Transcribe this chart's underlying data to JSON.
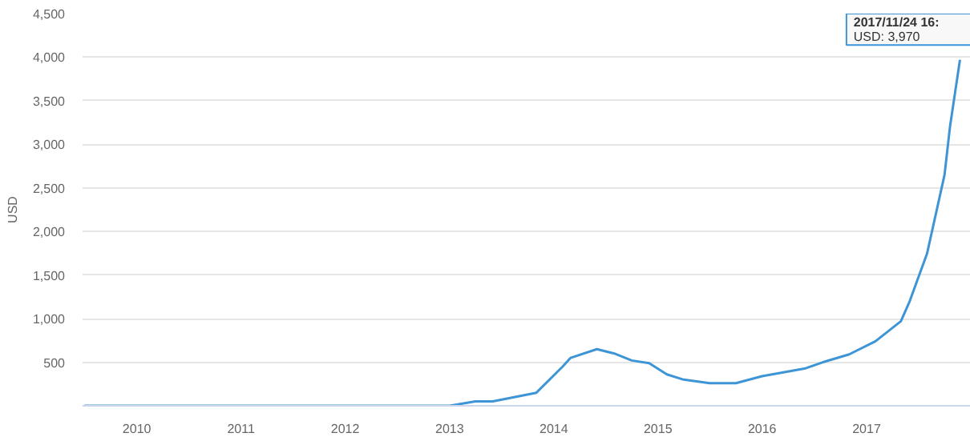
{
  "chart_data": {
    "type": "line",
    "ylabel": "USD",
    "x": [
      "2009-07",
      "2010-06",
      "2011-01",
      "2011-06",
      "2012-01",
      "2012-06",
      "2013-01",
      "2013-04",
      "2013-06",
      "2013-11",
      "2014-02",
      "2014-03",
      "2014-06",
      "2014-08",
      "2014-10",
      "2014-12",
      "2015-02",
      "2015-04",
      "2015-07",
      "2015-10",
      "2016-01",
      "2016-06",
      "2016-08",
      "2016-11",
      "2017-02",
      "2017-05",
      "2017-06",
      "2017-08",
      "2017-10",
      "2017-10-20",
      "2017-11-24"
    ],
    "series": [
      {
        "color": "#3d95d6",
        "values": [
          0,
          0,
          0,
          0,
          0,
          0,
          0,
          50,
          50,
          150,
          450,
          550,
          650,
          600,
          520,
          490,
          360,
          300,
          260,
          260,
          340,
          430,
          500,
          590,
          740,
          970,
          1200,
          1750,
          2650,
          3200,
          3970
        ]
      }
    ],
    "xlim": [
      "2009-06-25",
      "2018-01-01"
    ],
    "xticks": [
      {
        "value": "2010",
        "label": "2010"
      },
      {
        "value": "2011",
        "label": "2011"
      },
      {
        "value": "2012",
        "label": "2012"
      },
      {
        "value": "2013",
        "label": "2013"
      },
      {
        "value": "2014",
        "label": "2014"
      },
      {
        "value": "2015",
        "label": "2015"
      },
      {
        "value": "2016",
        "label": "2016"
      },
      {
        "value": "2017",
        "label": "2017"
      }
    ],
    "ylim": [
      0,
      4500
    ],
    "yticks": [
      500,
      {
        "value": 1000,
        "label": "1,000"
      },
      {
        "value": 1500,
        "label": "1,500"
      },
      {
        "value": 2000,
        "label": "2,000"
      },
      {
        "value": 2500,
        "label": "2,500"
      },
      {
        "value": 3000,
        "label": "3,000"
      },
      {
        "value": 3500,
        "label": "3,500"
      },
      {
        "value": 4000,
        "label": "4,000"
      },
      {
        "value": 4500,
        "label": "4,500"
      }
    ],
    "grid": "y",
    "marker": "none",
    "line_style": "solid",
    "annotations": [
      "2017/11/24 16:",
      "USD: 3,970"
    ]
  }
}
